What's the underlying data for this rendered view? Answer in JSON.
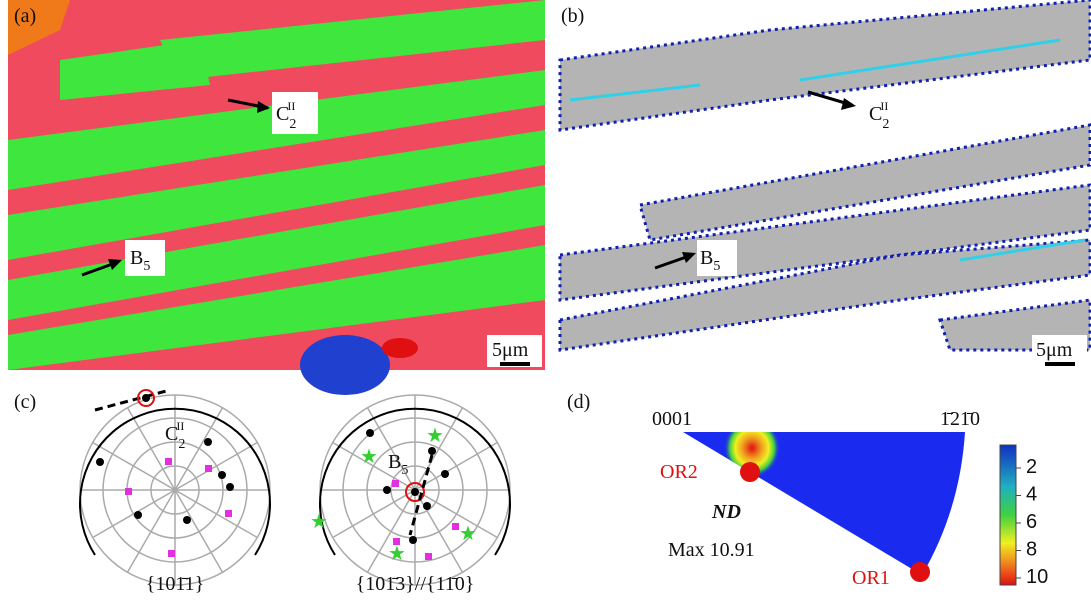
{
  "panel_a": {
    "label": "(a)",
    "c_label": {
      "base": "C",
      "sub": "2",
      "sup": "II"
    },
    "b_label": {
      "base": "B",
      "sub": "5"
    },
    "scale": "5μm"
  },
  "panel_b": {
    "label": "(b)",
    "c_label": {
      "base": "C",
      "sub": "2",
      "sup": "II"
    },
    "b_label": {
      "base": "B",
      "sub": "5"
    },
    "scale": "5μm"
  },
  "panel_c": {
    "label": "(c)",
    "c_label": {
      "base": "C",
      "sub": "2",
      "sup": "II"
    },
    "b_label": {
      "base": "B",
      "sub": "5"
    },
    "left_plane": "{101̄1}",
    "right_plane": "{101̄3}//{11̄0}"
  },
  "panel_d": {
    "label": "(d)",
    "corner_left": "0001",
    "corner_right": "1̄21̄0",
    "or2": "OR2",
    "or1": "OR1",
    "nd": "ND",
    "max": "Max 10.91",
    "colorbar_ticks": [
      "2",
      "4",
      "6",
      "8",
      "10"
    ]
  }
}
